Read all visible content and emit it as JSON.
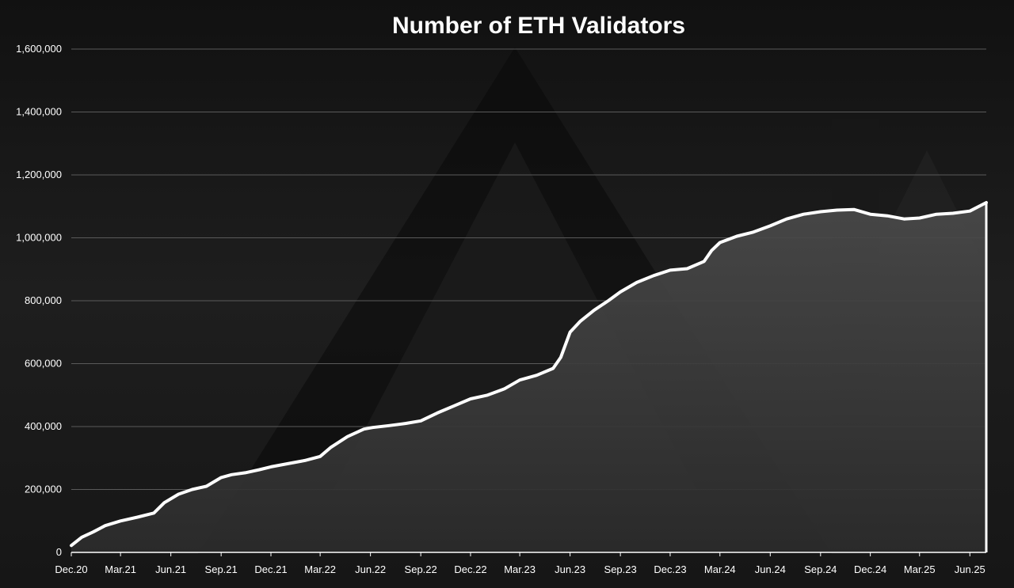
{
  "chart_data": {
    "type": "area",
    "title": "Number of ETH Validators",
    "xlabel": "",
    "ylabel": "",
    "ylim": [
      0,
      1600000
    ],
    "yticks": [
      0,
      200000,
      400000,
      600000,
      800000,
      1000000,
      1200000,
      1400000,
      1600000
    ],
    "ytick_labels": [
      "0",
      "200,000",
      "400,000",
      "600,000",
      "800,000",
      "1,000,000",
      "1,200,000",
      "1,400,000",
      "1,600,000"
    ],
    "xtick_labels": [
      "Dec.20",
      "Mar.21",
      "Jun.21",
      "Sep.21",
      "Dec.21",
      "Mar.22",
      "Jun.22",
      "Sep.22",
      "Dec.22",
      "Mar.23",
      "Jun.23",
      "Sep.23",
      "Dec.23",
      "Mar.24",
      "Jun.24",
      "Sep.24",
      "Dec.24",
      "Mar.25",
      "Jun.25"
    ],
    "grid": true,
    "legend": "none",
    "colors": {
      "line": "#ffffff",
      "fill": "#3a3a3a",
      "grid": "#5a5a5a",
      "background": "#0c0c0c"
    },
    "series": [
      {
        "x": [
          "2020-12-01",
          "2020-12-20",
          "2021-01-10",
          "2021-02-01",
          "2021-03-01",
          "2021-04-01",
          "2021-05-01",
          "2021-05-20",
          "2021-06-15",
          "2021-07-10",
          "2021-08-05",
          "2021-09-01",
          "2021-09-20",
          "2021-10-15",
          "2021-11-10",
          "2021-12-01",
          "2022-01-01",
          "2022-02-01",
          "2022-03-01",
          "2022-03-20",
          "2022-04-20",
          "2022-05-20",
          "2022-06-05",
          "2022-07-05",
          "2022-08-05",
          "2022-09-01",
          "2022-10-01",
          "2022-11-01",
          "2022-12-01",
          "2023-01-01",
          "2023-02-01",
          "2023-03-01",
          "2023-04-01",
          "2023-05-01",
          "2023-05-15",
          "2023-06-01",
          "2023-06-20",
          "2023-07-15",
          "2023-08-10",
          "2023-09-01",
          "2023-10-01",
          "2023-11-01",
          "2023-12-01",
          "2024-01-01",
          "2024-02-01",
          "2024-02-15",
          "2024-03-01",
          "2024-04-01",
          "2024-05-01",
          "2024-06-01",
          "2024-07-01",
          "2024-08-01",
          "2024-09-01",
          "2024-10-01",
          "2024-11-01",
          "2024-12-01",
          "2025-01-01",
          "2025-02-01",
          "2025-03-01",
          "2025-04-01",
          "2025-05-01",
          "2025-06-01",
          "2025-07-01"
        ],
        "y": [
          22000,
          48000,
          65000,
          85000,
          100000,
          112000,
          125000,
          158000,
          185000,
          200000,
          210000,
          238000,
          247000,
          253000,
          263000,
          272000,
          282000,
          292000,
          305000,
          333000,
          368000,
          392000,
          397000,
          403000,
          410000,
          418000,
          443000,
          466000,
          488000,
          500000,
          520000,
          548000,
          563000,
          585000,
          620000,
          700000,
          735000,
          770000,
          800000,
          828000,
          858000,
          880000,
          897000,
          902000,
          925000,
          960000,
          985000,
          1005000,
          1018000,
          1038000,
          1060000,
          1075000,
          1083000,
          1088000,
          1090000,
          1075000,
          1070000,
          1060000,
          1063000,
          1075000,
          1078000,
          1085000,
          1112000
        ]
      }
    ]
  }
}
